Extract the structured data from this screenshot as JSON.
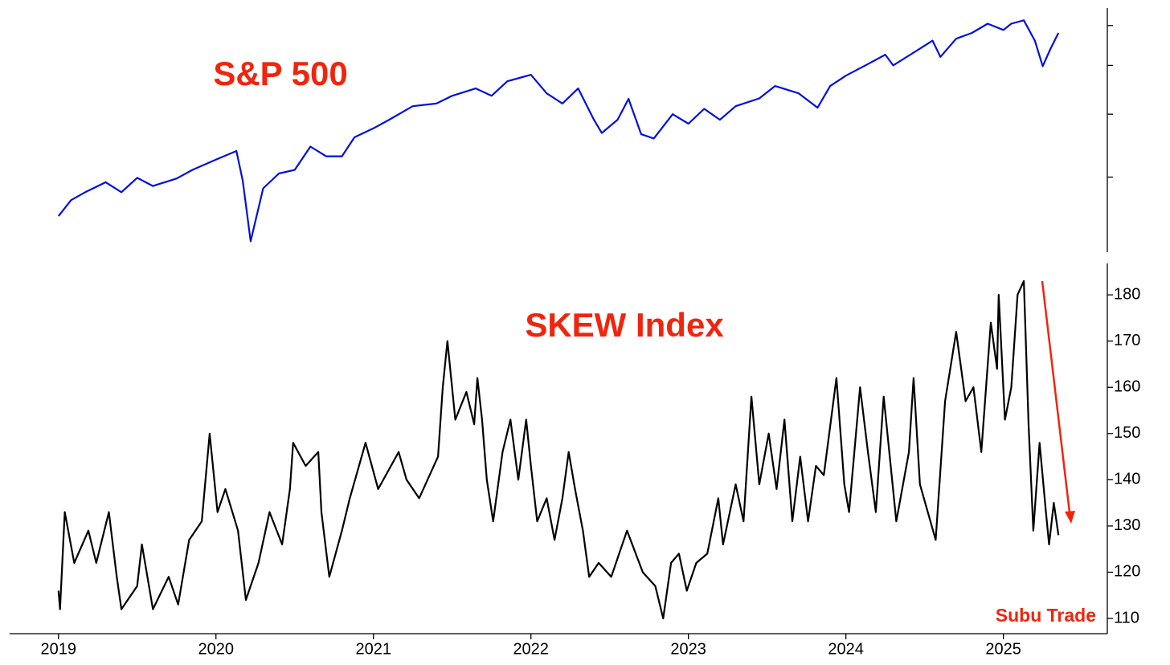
{
  "chart_data": [
    {
      "type": "line",
      "title": "S&P 500",
      "color": "#0010dd",
      "log": true,
      "tick_labels": false,
      "xlim": [
        2018.69,
        2025.66
      ],
      "ylim": [
        2128,
        6500
      ],
      "yticks": [
        3000,
        4000,
        5000,
        6000
      ],
      "x": [
        2019.0,
        2019.08,
        2019.17,
        2019.3,
        2019.4,
        2019.5,
        2019.6,
        2019.75,
        2019.85,
        2020.0,
        2020.13,
        2020.17,
        2020.22,
        2020.3,
        2020.4,
        2020.5,
        2020.6,
        2020.7,
        2020.8,
        2020.88,
        2021.0,
        2021.1,
        2021.25,
        2021.4,
        2021.5,
        2021.65,
        2021.75,
        2021.85,
        2022.0,
        2022.1,
        2022.2,
        2022.3,
        2022.4,
        2022.45,
        2022.55,
        2022.62,
        2022.7,
        2022.78,
        2022.9,
        2023.0,
        2023.1,
        2023.2,
        2023.3,
        2023.45,
        2023.55,
        2023.7,
        2023.82,
        2023.9,
        2024.0,
        2024.15,
        2024.25,
        2024.3,
        2024.45,
        2024.55,
        2024.6,
        2024.7,
        2024.8,
        2024.9,
        2025.0,
        2025.05,
        2025.13,
        2025.2,
        2025.25,
        2025.3,
        2025.35
      ],
      "values": [
        2510,
        2700,
        2800,
        2930,
        2800,
        2990,
        2880,
        2980,
        3100,
        3250,
        3380,
        2950,
        2237,
        2850,
        3050,
        3100,
        3450,
        3300,
        3300,
        3600,
        3750,
        3900,
        4150,
        4200,
        4350,
        4500,
        4350,
        4650,
        4790,
        4400,
        4200,
        4500,
        3900,
        3670,
        3900,
        4290,
        3650,
        3580,
        4000,
        3830,
        4100,
        3900,
        4150,
        4300,
        4550,
        4400,
        4120,
        4550,
        4770,
        5050,
        5250,
        5000,
        5350,
        5600,
        5200,
        5650,
        5800,
        6050,
        5880,
        6050,
        6144,
        5600,
        4982,
        5400,
        5800
      ]
    },
    {
      "type": "line",
      "title": "SKEW Index",
      "color": "#000000",
      "log": false,
      "tick_labels": true,
      "annotations": [
        "Subu Trade"
      ],
      "xlim": [
        2018.69,
        2025.66
      ],
      "xticks": [
        2019,
        2020,
        2021,
        2022,
        2023,
        2024,
        2025
      ],
      "ylim": [
        106.7,
        186.8
      ],
      "yticks": [
        110,
        120,
        130,
        140,
        150,
        160,
        170,
        180
      ],
      "x": [
        2019.0,
        2019.01,
        2019.04,
        2019.1,
        2019.19,
        2019.24,
        2019.32,
        2019.37,
        2019.4,
        2019.5,
        2019.53,
        2019.6,
        2019.7,
        2019.76,
        2019.83,
        2019.91,
        2019.96,
        2020.01,
        2020.06,
        2020.14,
        2020.19,
        2020.27,
        2020.34,
        2020.42,
        2020.47,
        2020.49,
        2020.57,
        2020.65,
        2020.67,
        2020.72,
        2020.8,
        2020.85,
        2020.95,
        2021.03,
        2021.16,
        2021.21,
        2021.29,
        2021.41,
        2021.44,
        2021.47,
        2021.52,
        2021.59,
        2021.64,
        2021.66,
        2021.69,
        2021.72,
        2021.76,
        2021.82,
        2021.87,
        2021.92,
        2021.97,
        2022.0,
        2022.04,
        2022.1,
        2022.15,
        2022.2,
        2022.24,
        2022.28,
        2022.33,
        2022.37,
        2022.43,
        2022.51,
        2022.56,
        2022.61,
        2022.71,
        2022.79,
        2022.84,
        2022.89,
        2022.94,
        2022.99,
        2023.05,
        2023.12,
        2023.19,
        2023.22,
        2023.3,
        2023.35,
        2023.4,
        2023.45,
        2023.51,
        2023.56,
        2023.61,
        2023.66,
        2023.71,
        2023.76,
        2023.81,
        2023.86,
        2023.94,
        2023.99,
        2024.02,
        2024.09,
        2024.14,
        2024.19,
        2024.24,
        2024.32,
        2024.4,
        2024.43,
        2024.47,
        2024.57,
        2024.63,
        2024.7,
        2024.76,
        2024.81,
        2024.86,
        2024.92,
        2024.96,
        2024.97,
        2025.01,
        2025.05,
        2025.09,
        2025.13,
        2025.16,
        2025.19,
        2025.23,
        2025.27,
        2025.29,
        2025.32,
        2025.35
      ],
      "values": [
        116,
        112,
        133,
        122,
        129,
        122,
        133,
        119,
        112,
        117,
        126,
        112,
        119,
        113,
        127,
        131,
        150,
        133,
        138,
        129,
        114,
        122,
        133,
        126,
        138,
        148,
        143,
        146,
        133,
        119,
        129,
        136,
        148,
        138,
        146,
        140,
        136,
        145,
        160,
        170,
        153,
        159,
        152,
        162,
        153,
        140,
        131,
        146,
        153,
        140,
        153,
        143,
        131,
        136,
        127,
        136,
        146,
        138,
        129,
        119,
        122,
        119,
        124,
        129,
        120,
        117,
        110,
        122,
        124,
        116,
        122,
        124,
        136,
        126,
        139,
        131,
        158,
        139,
        150,
        138,
        153,
        131,
        145,
        131,
        143,
        141,
        162,
        139,
        133,
        160,
        146,
        133,
        158,
        131,
        146,
        162,
        139,
        127,
        157,
        172,
        157,
        160,
        146,
        174,
        164,
        180,
        153,
        160,
        180,
        183,
        152,
        129,
        148,
        133,
        126,
        135,
        128
      ]
    }
  ]
}
